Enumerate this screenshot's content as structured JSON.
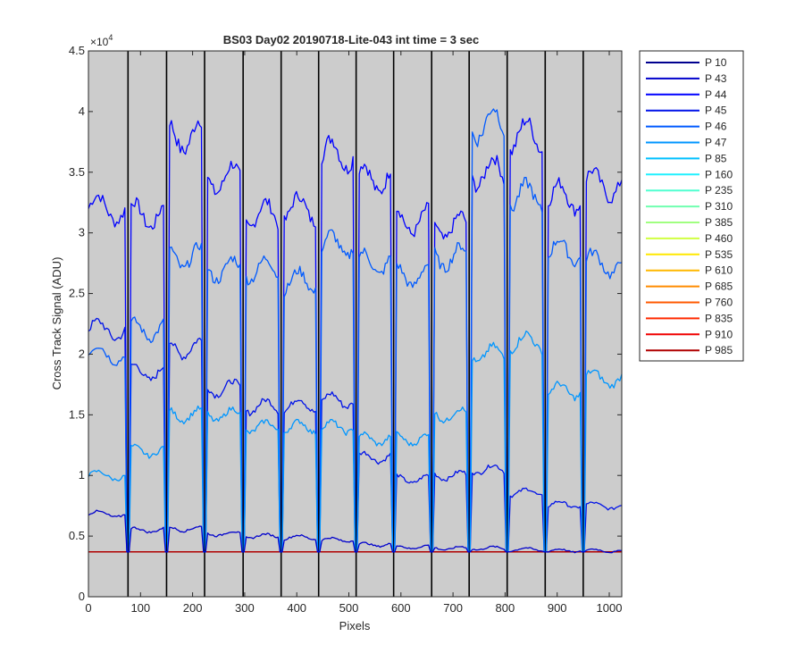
{
  "chart_data": {
    "type": "line",
    "title": "BS03 Day02 20190718-Lite-043 int time = 3 sec",
    "xlabel": "Pixels",
    "ylabel": "Cross Track Signal (ADU)",
    "y_exponent_label": "×10",
    "y_exponent_power": "4",
    "xlim": [
      0,
      1024
    ],
    "ylim": [
      0,
      45000
    ],
    "x_ticks": [
      0,
      100,
      200,
      300,
      400,
      500,
      600,
      700,
      800,
      900,
      1000
    ],
    "y_ticks": [
      0,
      5000,
      10000,
      15000,
      20000,
      25000,
      30000,
      35000,
      40000,
      45000
    ],
    "y_tick_labels": [
      "0",
      "0.5",
      "1",
      "1.5",
      "2",
      "2.5",
      "3",
      "3.5",
      "4",
      "4.5"
    ],
    "x_tick_labels": [
      "0",
      "100",
      "200",
      "300",
      "400",
      "500",
      "600",
      "700",
      "800",
      "900",
      "1000"
    ],
    "plot_background": "#cccccc",
    "column_boundaries": [
      76,
      150,
      223,
      297,
      370,
      442,
      514,
      586,
      659,
      731,
      804,
      877,
      950
    ],
    "floor_level": 3700,
    "segment_levels": {
      "P 44": [
        32000,
        31500,
        38000,
        34500,
        31500,
        32000,
        36500,
        34500,
        31000,
        30500,
        35000,
        38000,
        33000,
        34000
      ],
      "P 45": [
        22000,
        18500,
        20500,
        17200,
        15700,
        15800,
        16200,
        11500,
        9700,
        10000,
        10500,
        8600,
        7600,
        7500
      ],
      "P 46": [
        20000,
        22000,
        28000,
        27000,
        27000,
        26000,
        29000,
        27500,
        26500,
        28000,
        39000,
        33000,
        28500,
        27500
      ],
      "P 47": [
        10000,
        12000,
        15000,
        15000,
        14000,
        14000,
        14000,
        13000,
        13000,
        15000,
        20000,
        21000,
        17000,
        18000
      ],
      "P 43": [
        6800,
        5500,
        5600,
        5200,
        5000,
        4900,
        4700,
        4300,
        4100,
        4000,
        4000,
        3900,
        3800,
        3800
      ]
    },
    "series": [
      {
        "name": "P 10",
        "color": "#00008f"
      },
      {
        "name": "P 43",
        "color": "#0000cc"
      },
      {
        "name": "P 44",
        "color": "#0000ff"
      },
      {
        "name": "P 45",
        "color": "#0012e8"
      },
      {
        "name": "P 46",
        "color": "#005aff"
      },
      {
        "name": "P 47",
        "color": "#0096ff"
      },
      {
        "name": "P 85",
        "color": "#00c0ff"
      },
      {
        "name": "P 160",
        "color": "#20f0ff"
      },
      {
        "name": "P 235",
        "color": "#50ffd0"
      },
      {
        "name": "P 310",
        "color": "#70ffb0"
      },
      {
        "name": "P 385",
        "color": "#a0ff80"
      },
      {
        "name": "P 460",
        "color": "#d0ff40"
      },
      {
        "name": "P 535",
        "color": "#ffe800"
      },
      {
        "name": "P 610",
        "color": "#ffb800"
      },
      {
        "name": "P 685",
        "color": "#ff8c00"
      },
      {
        "name": "P 760",
        "color": "#ff5a00"
      },
      {
        "name": "P 835",
        "color": "#ff2a00"
      },
      {
        "name": "P 910",
        "color": "#f00000"
      },
      {
        "name": "P 985",
        "color": "#b00000"
      }
    ]
  }
}
